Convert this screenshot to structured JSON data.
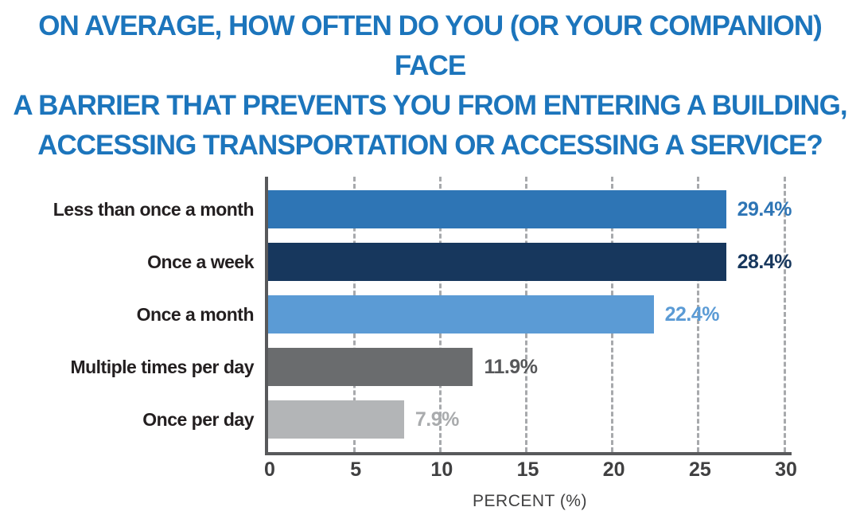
{
  "title": {
    "color": "#1c75bc",
    "lines": [
      "ON AVERAGE, HOW OFTEN DO YOU (OR YOUR COMPANION) FACE",
      "A BARRIER THAT PREVENTS YOU FROM ENTERING A BUILDING,",
      "ACCESSING TRANSPORTATION OR ACCESSING A SERVICE?"
    ]
  },
  "chart_data": {
    "type": "bar",
    "orientation": "horizontal",
    "title": "ON AVERAGE, HOW OFTEN DO YOU (OR YOUR COMPANION) FACE A BARRIER THAT PREVENTS YOU FROM ENTERING A BUILDING, ACCESSING TRANSPORTATION OR ACCESSING A SERVICE?",
    "categories": [
      "Less than once a month",
      "Once a week",
      "Once a month",
      "Multiple times per day",
      "Once per day"
    ],
    "values": [
      29.4,
      28.4,
      22.4,
      11.9,
      7.9
    ],
    "value_labels": [
      "29.4%",
      "28.4%",
      "22.4%",
      "11.9%",
      "7.9%"
    ],
    "bar_colors": [
      "#2e75b5",
      "#17375d",
      "#5b9bd5",
      "#6a6c6e",
      "#b3b5b7"
    ],
    "value_label_colors": [
      "#2e75b5",
      "#17375d",
      "#5b9bd5",
      "#565759",
      "#a9abad"
    ],
    "xlabel": "PERCENT (%)",
    "xlim": [
      0,
      30.6
    ],
    "ticks": [
      0,
      5,
      10,
      15,
      20,
      25,
      30
    ],
    "grid": "dashed-vertical-gridlines",
    "legend": "none",
    "axis_color": "#58595b",
    "gridline_color": "#a7a9ac",
    "tick_label_color": "#404041",
    "category_label_color": "#231f20"
  }
}
